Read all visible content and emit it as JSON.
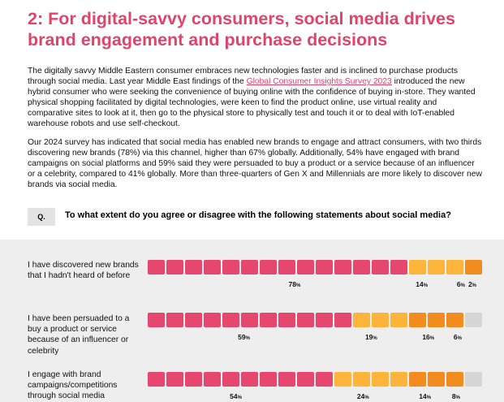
{
  "title": "2: For digital-savvy consumers, social media drives brand engagement and purchase decisions",
  "paragraph1": {
    "before": "The digitally savvy Middle Eastern consumer embraces new technologies faster and is inclined to purchase products through social media. Last year Middle East findings of the ",
    "link": "Global Consumer Insights Survey 2023",
    "after": " introduced the new hybrid consumer who were seeking the convenience of buying online with the confidence of buying in-store. They wanted physical shopping facilitated by digital technologies, were keen to find the product online, use virtual reality and comparative sites to look at it, then go to the physical store to physically test and touch it or to deal with IoT-enabled warehouse robots and use self-checkout."
  },
  "paragraph2": "Our 2024 survey has indicated that social media has enabled new brands to engage and attract consumers, with two thirds discovering new brands (78%) via this channel, higher than 67% globally. Additionally, 54% have engaged with brand campaigns on social platforms and 59% said they were persuaded to buy a product or a service because of an influencer or a celebrity, compared to 41% globally. More than three-quarters of Gen X and Millennials are more likely to discover new brands via social media.",
  "question": {
    "badge": "Q.",
    "text": "To what extent do you agree or disagree with the following statements about social media?"
  },
  "colors": {
    "title": "#e0446a",
    "seg1": "#e5476f",
    "seg2": "#fcb53a",
    "seg3": "#f28c1e",
    "seg4": "#d6d6d6"
  },
  "chart_data": {
    "type": "bar",
    "stacked": true,
    "categories": [
      "I have discovered new brands that I hadn't heard of before",
      "I have been persuaded to a buy a product or service because of an influencer or celebrity",
      "I engage with brand campaigns/competitions through social media"
    ],
    "series": [
      {
        "values": [
          78,
          59,
          54
        ]
      },
      {
        "values": [
          14,
          19,
          24
        ]
      },
      {
        "values": [
          6,
          16,
          14
        ]
      },
      {
        "values": [
          2,
          6,
          8
        ]
      }
    ],
    "value_labels": [
      [
        "78",
        "14",
        "6",
        "2"
      ],
      [
        "59",
        "19",
        "16",
        "6"
      ],
      [
        "54",
        "24",
        "14",
        "8"
      ]
    ],
    "unit": "%"
  }
}
